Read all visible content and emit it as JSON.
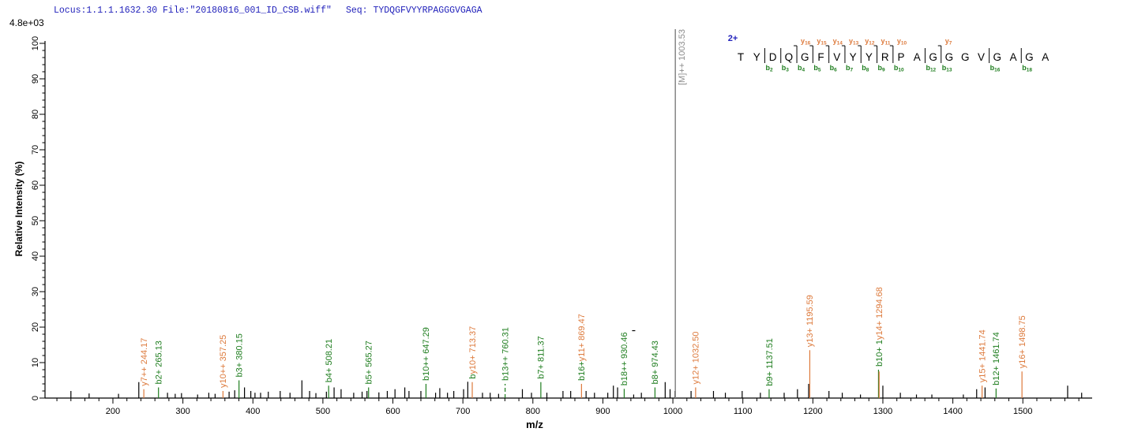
{
  "header": {
    "locus_text": "Locus:1.1.1.1632.30 File:\"20180816_001_ID_CSB.wiff\"",
    "seq_text": "Seq: TYDQGFVYYRPAGGGVGAGA"
  },
  "scale_label": "4.8e+03",
  "colors": {
    "header_blue": "#2222bb",
    "b_ion": "#1e7d1e",
    "y_ion": "#dd7a3c",
    "precursor_gray": "#8c8c8c",
    "peak_black": "#000000",
    "axis": "#000000"
  },
  "sequence_panel": {
    "charge": "2+",
    "residues": [
      "T",
      "Y",
      "D",
      "Q",
      "G",
      "F",
      "V",
      "Y",
      "Y",
      "R",
      "P",
      "A",
      "G",
      "G",
      "G",
      "V",
      "G",
      "A",
      "G",
      "A"
    ],
    "cleavages": [
      {
        "after": 2,
        "b": "b2"
      },
      {
        "after": 3,
        "b": "b3"
      },
      {
        "after": 4,
        "b": "b4",
        "y": "y16"
      },
      {
        "after": 5,
        "b": "b5",
        "y": "y15"
      },
      {
        "after": 6,
        "b": "b6",
        "y": "y14"
      },
      {
        "after": 7,
        "b": "b7",
        "y": "y13"
      },
      {
        "after": 8,
        "b": "b8",
        "y": "y12"
      },
      {
        "after": 9,
        "b": "b9",
        "y": "y11"
      },
      {
        "after": 10,
        "b": "b10",
        "y": "y10"
      },
      {
        "after": 12,
        "b": "b12"
      },
      {
        "after": 13,
        "b": "b13",
        "y": "y7"
      },
      {
        "after": 16,
        "b": "b16"
      },
      {
        "after": 18,
        "b": "b18"
      }
    ]
  },
  "chart_data": {
    "type": "bar",
    "subtype": "ms2-fragment-spectrum",
    "xlabel": "m/z",
    "ylabel": "Relative  Intensity (%)",
    "base_peak_intensity": "4.8e+03",
    "x_range": [
      103,
      1599
    ],
    "ylim": [
      0,
      100
    ],
    "x_major_ticks": [
      200,
      300,
      400,
      500,
      600,
      700,
      800,
      900,
      1000,
      1100,
      1200,
      1300,
      1400,
      1500
    ],
    "x_minor_step": 20,
    "y_major_step": 10,
    "y_minor_step": 2,
    "grid": false,
    "precursor": {
      "text": "[M]++ 1003.53",
      "mz": 1003.53,
      "height_pct": 104
    },
    "labeled_peaks": [
      {
        "text": "y7++ 244.17",
        "mz": 244.17,
        "ion": "y",
        "h": 2.5
      },
      {
        "text": "b2+ 265.13",
        "mz": 265.13,
        "ion": "b",
        "h": 3
      },
      {
        "text": "y10++ 357.25",
        "mz": 357.25,
        "ion": "y",
        "h": 2
      },
      {
        "text": "b3+ 380.15",
        "mz": 380.15,
        "ion": "b",
        "h": 5
      },
      {
        "text": "b4+ 508.21",
        "mz": 508.21,
        "ion": "b",
        "h": 3.5
      },
      {
        "text": "b5+ 565.27",
        "mz": 565.27,
        "ion": "b",
        "h": 3
      },
      {
        "text": "b10++ 647.29",
        "mz": 647.29,
        "ion": "b",
        "h": 4
      },
      {
        "text": "y10+ 713.37",
        "mz": 713.37,
        "ion": "y",
        "h": 4.5,
        "prefix": "b"
      },
      {
        "text": "b13++ 760.31",
        "mz": 760.31,
        "ion": "b",
        "h": 4,
        "dashed": true
      },
      {
        "text": "b7+ 811.37",
        "mz": 811.37,
        "ion": "b",
        "h": 4.5
      },
      {
        "text": "y11+ 869.47",
        "mz": 869.47,
        "ion": "y",
        "h": 4,
        "prefix": "b16+"
      },
      {
        "text": "b18++ 930.46",
        "mz": 930.46,
        "ion": "b",
        "h": 2.6
      },
      {
        "text": "b8+ 974.43",
        "mz": 974.43,
        "ion": "b",
        "h": 3
      },
      {
        "text": "y12+ 1032.50",
        "mz": 1032.5,
        "ion": "y",
        "h": 3
      },
      {
        "text": "b9+ 1137.51",
        "mz": 1137.51,
        "ion": "b",
        "h": 2.5
      },
      {
        "text": "y13+ 1195.59",
        "mz": 1195.59,
        "ion": "y",
        "h": 13.5
      },
      {
        "text": "y14+ 1294.68",
        "mz": 1294.68,
        "ion": "y",
        "h": 7.5,
        "prefix": "b10+ 1",
        "green_line_h": 8
      },
      {
        "text": "y15+ 1441.74",
        "mz": 1441.74,
        "ion": "y",
        "h": 3.5
      },
      {
        "text": "b12+ 1461.74",
        "mz": 1461.74,
        "ion": "b",
        "h": 2.7
      },
      {
        "text": "y16+ 1498.75",
        "mz": 1498.75,
        "ion": "y",
        "h": 7.5
      }
    ],
    "unlabeled_peaks": [
      [
        140,
        2
      ],
      [
        166,
        1.3
      ],
      [
        208,
        1.2
      ],
      [
        237,
        4.5
      ],
      [
        278,
        1.5
      ],
      [
        289,
        1.2
      ],
      [
        298,
        1.4
      ],
      [
        321,
        1
      ],
      [
        337,
        1.5
      ],
      [
        346,
        1.2
      ],
      [
        366,
        1.8
      ],
      [
        374,
        2.2
      ],
      [
        388,
        3
      ],
      [
        397,
        2
      ],
      [
        403,
        1.5
      ],
      [
        411,
        1.5
      ],
      [
        422,
        1.8
      ],
      [
        439,
        2
      ],
      [
        453,
        1.5
      ],
      [
        470,
        5
      ],
      [
        481,
        2
      ],
      [
        490,
        1.4
      ],
      [
        505,
        1.8
      ],
      [
        516,
        3
      ],
      [
        526,
        2.5
      ],
      [
        544,
        1.5
      ],
      [
        556,
        1.8
      ],
      [
        563,
        2
      ],
      [
        580,
        1.6
      ],
      [
        592,
        2
      ],
      [
        603,
        2.5
      ],
      [
        617,
        3
      ],
      [
        623,
        2
      ],
      [
        640,
        2
      ],
      [
        661,
        1.5
      ],
      [
        667,
        2.8
      ],
      [
        678,
        1.5
      ],
      [
        687,
        2
      ],
      [
        701,
        2.5
      ],
      [
        707,
        4.6
      ],
      [
        728,
        1.5
      ],
      [
        739,
        1.5
      ],
      [
        751,
        1.2
      ],
      [
        785,
        2.5
      ],
      [
        798,
        1.5
      ],
      [
        820,
        1.5
      ],
      [
        843,
        2
      ],
      [
        854,
        2
      ],
      [
        876,
        2
      ],
      [
        888,
        1.5
      ],
      [
        907,
        1.5
      ],
      [
        915,
        3.5
      ],
      [
        921,
        3
      ],
      [
        944,
        1
      ],
      [
        955,
        1.5
      ],
      [
        989,
        4.5
      ],
      [
        996,
        2.5
      ],
      [
        1003,
        2
      ],
      [
        1026,
        2
      ],
      [
        1058,
        2
      ],
      [
        1075,
        1.5
      ],
      [
        1099,
        2
      ],
      [
        1125,
        1.5
      ],
      [
        1159,
        1.5
      ],
      [
        1178,
        2.5
      ],
      [
        1194,
        4
      ],
      [
        1223,
        2
      ],
      [
        1242,
        1.5
      ],
      [
        1268,
        1
      ],
      [
        1300,
        3.5
      ],
      [
        1325,
        1.5
      ],
      [
        1348,
        1
      ],
      [
        1370,
        1
      ],
      [
        1415,
        1
      ],
      [
        1434,
        2.5
      ],
      [
        1446,
        3
      ],
      [
        1564,
        3.5
      ],
      [
        1584,
        1.5
      ]
    ],
    "stray_dash": {
      "mz": 944,
      "pct": 19
    }
  }
}
